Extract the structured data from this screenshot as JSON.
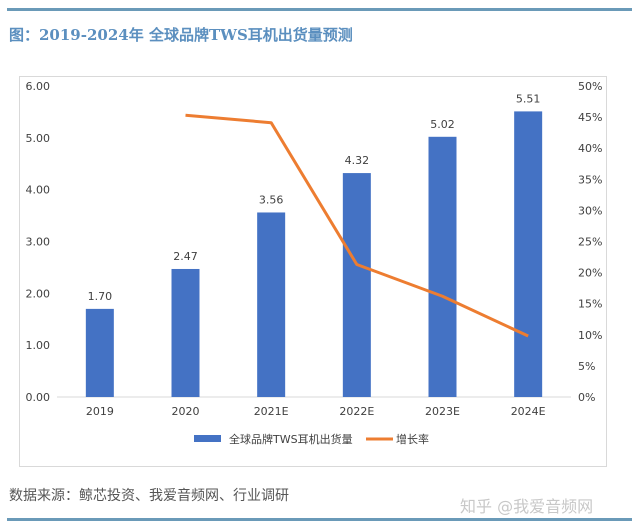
{
  "title": "图：2019-2024年 全球品牌TWS耳机出货量预测",
  "source": "数据来源：鲸芯投资、我爱音频网、行业调研",
  "watermark": "知乎 @我爱音频网",
  "colors": {
    "bar": "#4472c4",
    "line": "#ed7d31",
    "title": "#5b8fbf",
    "rule": "#6a9ab8"
  },
  "chart_data": {
    "type": "bar+line",
    "categories": [
      "2019",
      "2020",
      "2021E",
      "2022E",
      "2023E",
      "2024E"
    ],
    "series": [
      {
        "name": "全球品牌TWS耳机出货量",
        "type": "bar",
        "axis": "left",
        "values": [
          1.7,
          2.47,
          3.56,
          4.32,
          5.02,
          5.51
        ],
        "labels": [
          "1.70",
          "2.47",
          "3.56",
          "4.32",
          "5.02",
          "5.51"
        ]
      },
      {
        "name": "增长率",
        "type": "line",
        "axis": "right",
        "values": [
          null,
          45.3,
          44.1,
          21.3,
          16.2,
          9.8
        ]
      }
    ],
    "y_left": {
      "range": [
        0,
        6
      ],
      "ticks": [
        "0.00",
        "1.00",
        "2.00",
        "3.00",
        "4.00",
        "5.00",
        "6.00"
      ]
    },
    "y_right": {
      "range": [
        0,
        50
      ],
      "ticks": [
        "0%",
        "5%",
        "10%",
        "15%",
        "20%",
        "25%",
        "30%",
        "35%",
        "40%",
        "45%",
        "50%"
      ]
    },
    "grid": false,
    "legend": "bottom"
  }
}
